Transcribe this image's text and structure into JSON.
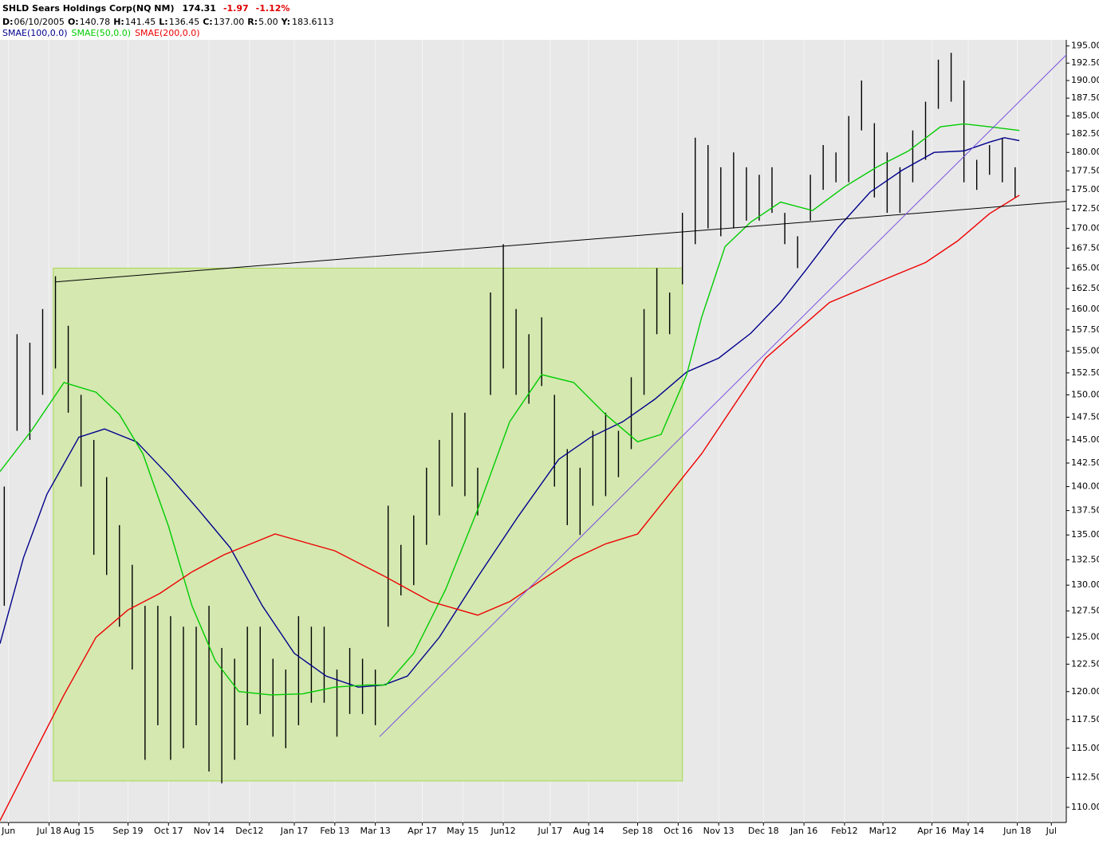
{
  "chart_data": {
    "type": "price-bars",
    "title": "SHLD Sears Holdings Corp(NQ NM)",
    "last": "174.31",
    "change": "-1.97",
    "change_pct": "-1.12%",
    "info": [
      {
        "key": "D:",
        "value": "06/10/2005"
      },
      {
        "key": "O:",
        "value": "140.78"
      },
      {
        "key": "H:",
        "value": "141.45"
      },
      {
        "key": "L:",
        "value": "136.45"
      },
      {
        "key": "C:",
        "value": "137.00"
      },
      {
        "key": "R:",
        "value": "5.00"
      },
      {
        "key": "Y:",
        "value": "183.6113"
      }
    ],
    "ylog": true,
    "xlim": [
      0,
      500
    ],
    "ylim": [
      108.75,
      195.9
    ],
    "xticks": [
      {
        "value": 4,
        "label": "Jun"
      },
      {
        "value": 23,
        "label": "Jul 18"
      },
      {
        "value": 37,
        "label": "Aug 15"
      },
      {
        "value": 60,
        "label": "Sep 19"
      },
      {
        "value": 79,
        "label": "Oct 17"
      },
      {
        "value": 98,
        "label": "Nov 14"
      },
      {
        "value": 117,
        "label": "Dec12"
      },
      {
        "value": 138,
        "label": "Jan 17"
      },
      {
        "value": 157,
        "label": "Feb 13"
      },
      {
        "value": 176,
        "label": "Mar 13"
      },
      {
        "value": 198,
        "label": "Apr 17"
      },
      {
        "value": 217,
        "label": "May 15"
      },
      {
        "value": 236,
        "label": "Jun12"
      },
      {
        "value": 258,
        "label": "Jul 17"
      },
      {
        "value": 276,
        "label": "Aug 14"
      },
      {
        "value": 299,
        "label": "Sep 18"
      },
      {
        "value": 318,
        "label": "Oct 16"
      },
      {
        "value": 337,
        "label": "Nov 13"
      },
      {
        "value": 358,
        "label": "Dec 18"
      },
      {
        "value": 377,
        "label": "Jan 16"
      },
      {
        "value": 396,
        "label": "Feb12"
      },
      {
        "value": 414,
        "label": "Mar12"
      },
      {
        "value": 437,
        "label": "Apr 16"
      },
      {
        "value": 454,
        "label": "May 14"
      },
      {
        "value": 477,
        "label": "Jun 18"
      },
      {
        "value": 493,
        "label": "Jul"
      }
    ],
    "yticks": [
      {
        "value": 110,
        "label": "110.00"
      },
      {
        "value": 112.5,
        "label": "112.50"
      },
      {
        "value": 115,
        "label": "115.00"
      },
      {
        "value": 117.5,
        "label": "117.50"
      },
      {
        "value": 120,
        "label": "120.00"
      },
      {
        "value": 122.5,
        "label": "122.50"
      },
      {
        "value": 125,
        "label": "125.00"
      },
      {
        "value": 127.5,
        "label": "127.50"
      },
      {
        "value": 130,
        "label": "130.00"
      },
      {
        "value": 132.5,
        "label": "132.50"
      },
      {
        "value": 135,
        "label": "135.00"
      },
      {
        "value": 137.5,
        "label": "137.50"
      },
      {
        "value": 140,
        "label": "140.00"
      },
      {
        "value": 142.5,
        "label": "142.50"
      },
      {
        "value": 145,
        "label": "145.00"
      },
      {
        "value": 147.5,
        "label": "147.50"
      },
      {
        "value": 150,
        "label": "150.00"
      },
      {
        "value": 152.5,
        "label": "152.50"
      },
      {
        "value": 155,
        "label": "155.00"
      },
      {
        "value": 157.5,
        "label": "157.50"
      },
      {
        "value": 160,
        "label": "160.00"
      },
      {
        "value": 162.5,
        "label": "162.50"
      },
      {
        "value": 165,
        "label": "165.00"
      },
      {
        "value": 167.5,
        "label": "167.50"
      },
      {
        "value": 170,
        "label": "170.00"
      },
      {
        "value": 172.5,
        "label": "172.50"
      },
      {
        "value": 175,
        "label": "175.00"
      },
      {
        "value": 177.5,
        "label": "177.50"
      },
      {
        "value": 180,
        "label": "180.00"
      },
      {
        "value": 182.5,
        "label": "182.50"
      },
      {
        "value": 185,
        "label": "185.00"
      },
      {
        "value": 187.5,
        "label": "187.50"
      },
      {
        "value": 190,
        "label": "190.00"
      },
      {
        "value": 192.5,
        "label": "192.50"
      },
      {
        "value": 195,
        "label": "195.00"
      }
    ],
    "bars": {
      "color": "#000000",
      "x": [
        2,
        8,
        14,
        20,
        26,
        32,
        38,
        44,
        50,
        56,
        62,
        68,
        74,
        80,
        86,
        92,
        98,
        104,
        110,
        116,
        122,
        128,
        134,
        140,
        146,
        152,
        158,
        164,
        170,
        176,
        182,
        188,
        194,
        200,
        206,
        212,
        218,
        224,
        230,
        236,
        242,
        248,
        254,
        260,
        266,
        272,
        278,
        284,
        290,
        296,
        302,
        308,
        314,
        320,
        326,
        332,
        338,
        344,
        350,
        356,
        362,
        368,
        374,
        380,
        386,
        392,
        398,
        404,
        410,
        416,
        422,
        428,
        434,
        440,
        446,
        452,
        458,
        464,
        470,
        476
      ],
      "high": [
        140,
        157,
        156,
        160,
        164,
        158,
        150,
        145,
        141,
        136,
        132,
        128,
        128,
        127,
        126,
        126,
        128,
        124,
        123,
        126,
        126,
        123,
        122,
        127,
        126,
        126,
        122,
        124,
        123,
        122,
        138,
        134,
        137,
        142,
        145,
        148,
        148,
        142,
        162,
        168,
        160,
        157,
        159,
        150,
        144,
        142,
        146,
        148,
        146,
        152,
        160,
        165,
        162,
        172,
        182,
        181,
        178,
        180,
        178,
        177,
        178,
        172,
        169,
        177,
        181,
        180,
        185,
        190,
        184,
        180,
        178,
        183,
        187,
        193,
        194,
        190,
        179,
        181,
        182,
        178
      ],
      "low": [
        128,
        146,
        145,
        150,
        153,
        148,
        140,
        133,
        131,
        126,
        122,
        114,
        117,
        114,
        115,
        117,
        113,
        112,
        114,
        117,
        118,
        116,
        115,
        117,
        119,
        119,
        116,
        118,
        118,
        117,
        126,
        129,
        130,
        134,
        137,
        140,
        139,
        137,
        150,
        153,
        150,
        149,
        151,
        140,
        136,
        135,
        138,
        139,
        141,
        144,
        150,
        157,
        157,
        163,
        168,
        170,
        169,
        170,
        171,
        171,
        172,
        168,
        165,
        171,
        175,
        176,
        176,
        183,
        174,
        172,
        172,
        176,
        179,
        186,
        187,
        176,
        175,
        177,
        176,
        174
      ]
    },
    "series": [
      {
        "name": "SMAE(100,0.0)",
        "color": "#00008b",
        "x": [
          0,
          11,
          22,
          37,
          49,
          64,
          79,
          93,
          108,
          123,
          138,
          153,
          168,
          180,
          191,
          206,
          224,
          243,
          262,
          277,
          292,
          307,
          322,
          337,
          352,
          366,
          378,
          393,
          408,
          423,
          438,
          452,
          464,
          471,
          478
        ],
        "values": [
          124.4,
          132.7,
          139.2,
          145.3,
          146.2,
          144.8,
          141.2,
          137.6,
          133.7,
          128.0,
          123.5,
          121.4,
          120.4,
          120.6,
          121.4,
          125.0,
          130.8,
          136.9,
          142.9,
          145.3,
          147.0,
          149.5,
          152.6,
          154.2,
          157.1,
          160.8,
          164.8,
          170.1,
          174.7,
          177.6,
          180.0,
          180.2,
          181.4,
          182.0,
          181.6
        ]
      },
      {
        "name": "SMAE(50,0.0)",
        "color": "#00cc00",
        "x": [
          0,
          15,
          30,
          45,
          56,
          67,
          79,
          90,
          101,
          112,
          127,
          142,
          157,
          172,
          181,
          194,
          209,
          224,
          239,
          254,
          269,
          284,
          299,
          310,
          322,
          329,
          340,
          352,
          366,
          381,
          396,
          411,
          426,
          441,
          452,
          464,
          478
        ],
        "values": [
          141.6,
          146.1,
          151.4,
          150.3,
          147.8,
          143.5,
          135.9,
          128.0,
          122.8,
          120.0,
          119.7,
          119.8,
          120.4,
          120.6,
          120.6,
          123.5,
          129.6,
          137.6,
          147.0,
          152.3,
          151.4,
          147.8,
          144.8,
          145.6,
          152.3,
          159.0,
          167.7,
          170.8,
          173.4,
          172.3,
          175.4,
          178.0,
          180.2,
          183.5,
          183.9,
          183.5,
          183.0
        ]
      },
      {
        "name": "SMAE(200,0.0)",
        "color": "#ee0000",
        "x": [
          0,
          15,
          30,
          45,
          60,
          75,
          90,
          105,
          129,
          157,
          180,
          202,
          224,
          239,
          254,
          269,
          284,
          299,
          329,
          359,
          389,
          411,
          434,
          449,
          464,
          478
        ],
        "values": [
          108.9,
          114.2,
          119.7,
          125.0,
          127.6,
          129.2,
          131.3,
          133.0,
          135.1,
          133.4,
          130.9,
          128.4,
          127.1,
          128.4,
          130.5,
          132.6,
          134.1,
          135.1,
          143.5,
          154.2,
          160.8,
          163.2,
          165.7,
          168.4,
          171.9,
          174.3
        ]
      }
    ],
    "highlight_box": {
      "color": "#d4e8b0",
      "x": [
        25,
        320
      ],
      "y": [
        112.2,
        165
      ]
    },
    "trendlines": [
      {
        "color": "#000000",
        "x": [
          26,
          500
        ],
        "y": [
          163.3,
          173.5
        ]
      },
      {
        "color": "#7b4fe0",
        "x": [
          178,
          500
        ],
        "y": [
          116.0,
          193.7
        ]
      }
    ]
  }
}
